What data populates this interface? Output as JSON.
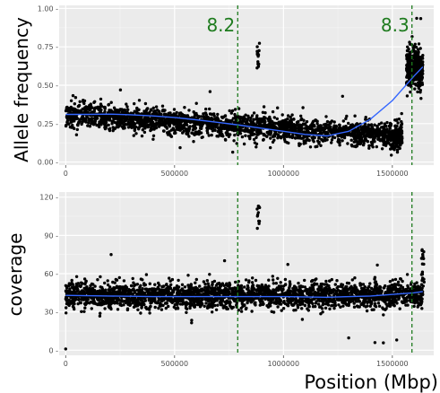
{
  "chart_data": [
    {
      "type": "scatter",
      "title": "",
      "xlabel": "",
      "ylabel": "Allele frequency",
      "xlim": [
        -30000,
        1690000
      ],
      "ylim": [
        -0.02,
        1.02
      ],
      "yticks": [
        0.0,
        0.25,
        0.5,
        0.75,
        1.0
      ],
      "ytick_labels": [
        "0.00 -",
        "0.25 -",
        "0.50 -",
        "0.75 -",
        "1.00 -"
      ],
      "xticks": [
        0,
        500000,
        1000000,
        1500000
      ],
      "xtick_labels": [
        "0",
        "500000",
        "1000000",
        "1500000"
      ],
      "grid": true,
      "background": "#ebebeb",
      "point_color": "#000000",
      "smooth_color": "#3366ff",
      "vline_color": "#1e7b1e",
      "vlines": [
        {
          "x": 790000,
          "label": "8.2"
        },
        {
          "x": 1590000,
          "label": "8.3"
        }
      ],
      "smooth_line": {
        "x": [
          0,
          100000,
          200000,
          300000,
          400000,
          500000,
          600000,
          700000,
          800000,
          900000,
          1000000,
          1100000,
          1200000,
          1300000,
          1400000,
          1500000,
          1600000,
          1640000
        ],
        "y": [
          0.31,
          0.31,
          0.312,
          0.308,
          0.3,
          0.29,
          0.275,
          0.258,
          0.24,
          0.22,
          0.2,
          0.18,
          0.17,
          0.2,
          0.28,
          0.4,
          0.56,
          0.62
        ]
      },
      "point_bands": [
        {
          "x_range": [
            0,
            1490000
          ],
          "center": [
            0.31,
            0.17
          ],
          "spread": 0.07,
          "count": 2200
        },
        {
          "x_range": [
            1490000,
            1545000
          ],
          "center": [
            0.17,
            0.17
          ],
          "spread": 0.08,
          "count": 160
        },
        {
          "x_range": [
            1565000,
            1640000
          ],
          "center": [
            0.6,
            0.62
          ],
          "spread": 0.12,
          "count": 400
        }
      ],
      "point_clusters": [
        {
          "x": 885000,
          "y_range": [
            0.6,
            0.78
          ],
          "count": 18
        }
      ]
    },
    {
      "type": "scatter",
      "title": "",
      "xlabel": "Position (Mbp)",
      "ylabel": "coverage",
      "xlim": [
        -30000,
        1690000
      ],
      "ylim": [
        -4,
        124
      ],
      "yticks": [
        0,
        30,
        60,
        90,
        120
      ],
      "ytick_labels": [
        "0 -",
        "30 -",
        "60 -",
        "90 -",
        "120 -"
      ],
      "xticks": [
        0,
        500000,
        1000000,
        1500000
      ],
      "xtick_labels": [
        "0",
        "500000",
        "1000000",
        "1500000"
      ],
      "grid": true,
      "background": "#ebebeb",
      "point_color": "#000000",
      "smooth_color": "#3366ff",
      "vline_color": "#1e7b1e",
      "vlines": [
        {
          "x": 790000
        },
        {
          "x": 1590000
        }
      ],
      "smooth_line": {
        "x": [
          0,
          200000,
          400000,
          600000,
          800000,
          1000000,
          1200000,
          1400000,
          1600000,
          1640000
        ],
        "y": [
          43,
          42.5,
          42,
          42,
          42,
          42,
          41.5,
          42.5,
          45,
          46
        ]
      },
      "point_bands": [
        {
          "x_range": [
            0,
            1640000
          ],
          "center": [
            43,
            43
          ],
          "spread": 9,
          "count": 2600
        }
      ],
      "point_clusters": [
        {
          "x": 885000,
          "y_range": [
            95,
            116
          ],
          "count": 12
        },
        {
          "x": 1640000,
          "y_range": [
            50,
            80
          ],
          "count": 20
        }
      ],
      "extra_points": [
        {
          "x": 0,
          "y": 1
        },
        {
          "x": 1420000,
          "y": 6
        },
        {
          "x": 1520000,
          "y": 8
        }
      ]
    }
  ]
}
